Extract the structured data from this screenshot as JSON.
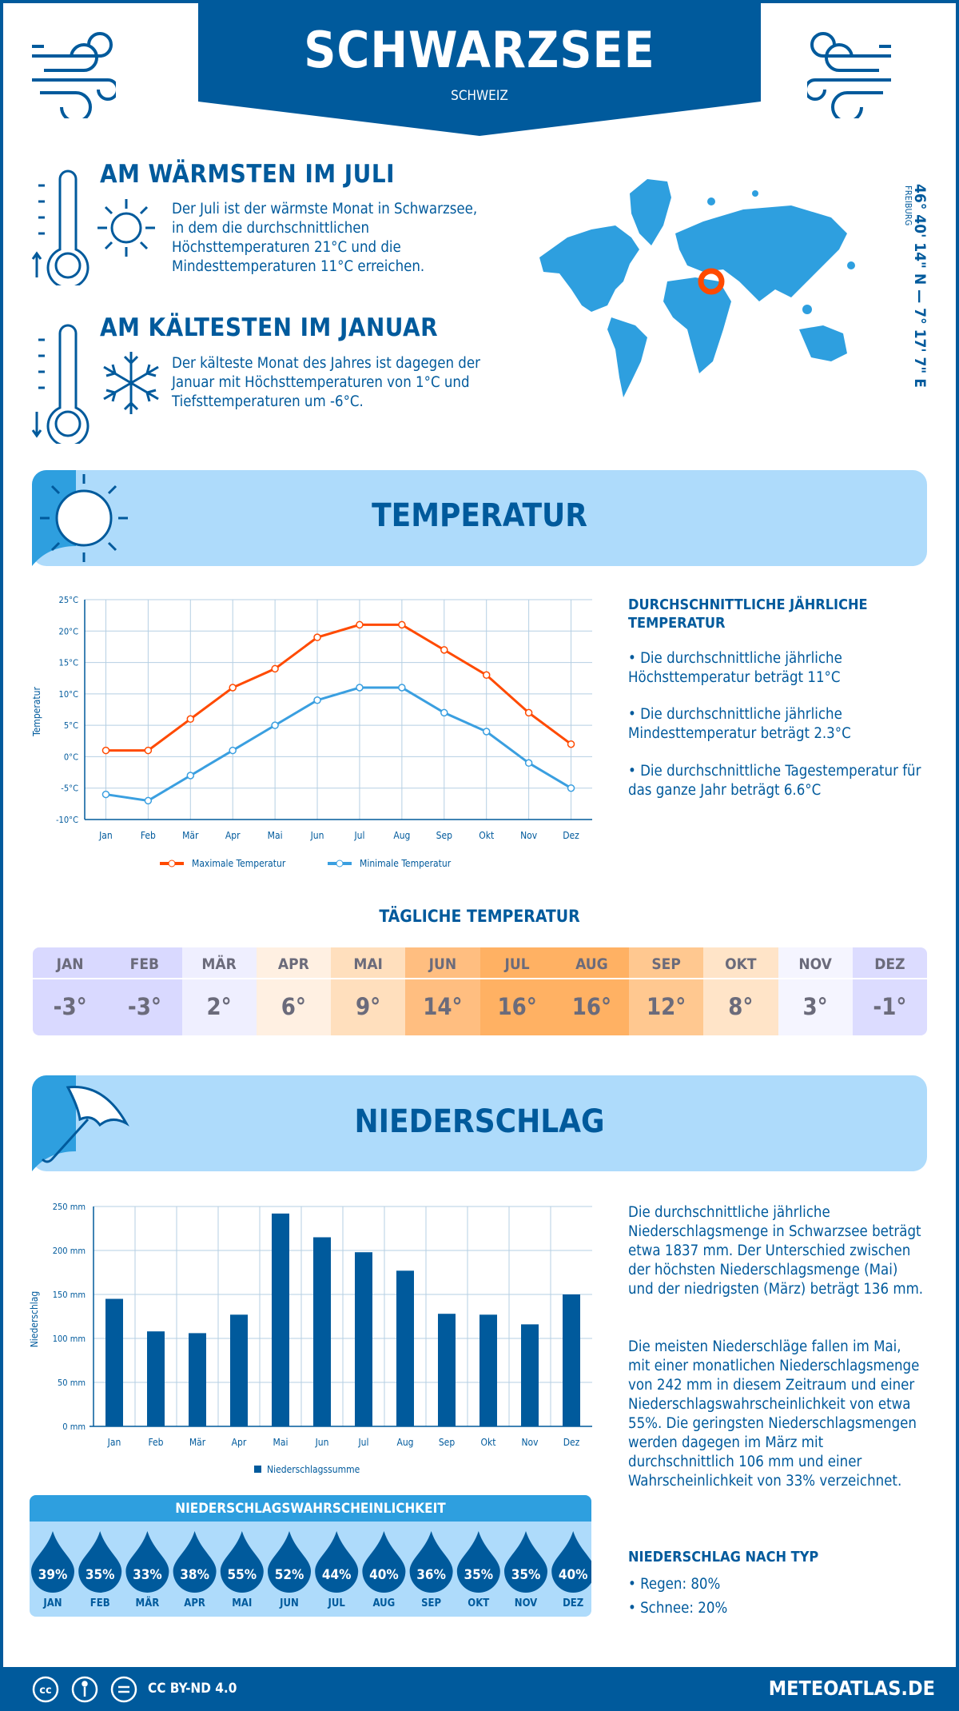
{
  "header": {
    "title": "SCHWARZSEE",
    "subtitle": "SCHWEIZ"
  },
  "warmest": {
    "title": "AM WÄRMSTEN IM JULI",
    "text": "Der Juli ist der wärmste Monat in Schwarzsee, in dem die durchschnittlichen Höchsttemperaturen 21°C und die Mindesttemperaturen 11°C erreichen."
  },
  "coldest": {
    "title": "AM KÄLTESTEN IM JANUAR",
    "text": "Der kälteste Monat des Jahres ist dagegen der Januar mit Höchsttemperaturen von 1°C und Tiefsttemperaturen um -6°C."
  },
  "map": {
    "coordinates": "46° 40' 14\" N — 7° 17' 7\" E",
    "region": "FREIBURG",
    "marker_color": "#ff4a00",
    "land_color": "#2e9fdf"
  },
  "temperature": {
    "section_title": "TEMPERATUR",
    "side_title": "DURCHSCHNITTLICHE JÄHRLICHE TEMPERATUR",
    "bullets": [
      "• Die durchschnittliche jährliche Höchsttemperatur beträgt 11°C",
      "• Die durchschnittliche jährliche Mindesttemperatur beträgt 2.3°C",
      "• Die durchschnittliche Tagestemperatur für das ganze Jahr beträgt 6.6°C"
    ],
    "daily_title": "TÄGLICHE TEMPERATUR",
    "daily": [
      {
        "month": "JAN",
        "value": "-3°",
        "color": "#d9d9ff"
      },
      {
        "month": "FEB",
        "value": "-3°",
        "color": "#d9d9ff"
      },
      {
        "month": "MÄR",
        "value": "2°",
        "color": "#efefff"
      },
      {
        "month": "APR",
        "value": "6°",
        "color": "#fff0e2"
      },
      {
        "month": "MAI",
        "value": "9°",
        "color": "#ffdfbd"
      },
      {
        "month": "JUN",
        "value": "14°",
        "color": "#ffbe80"
      },
      {
        "month": "JUL",
        "value": "16°",
        "color": "#ffb163"
      },
      {
        "month": "AUG",
        "value": "16°",
        "color": "#ffb163"
      },
      {
        "month": "SEP",
        "value": "12°",
        "color": "#ffc890"
      },
      {
        "month": "OKT",
        "value": "8°",
        "color": "#ffe4c8"
      },
      {
        "month": "NOV",
        "value": "3°",
        "color": "#f5f5ff"
      },
      {
        "month": "DEZ",
        "value": "-1°",
        "color": "#dcdcff"
      }
    ]
  },
  "precipitation": {
    "section_title": "NIEDERSCHLAG",
    "text1": "Die durchschnittliche jährliche Niederschlagsmenge in Schwarzsee beträgt etwa 1837 mm. Der Unterschied zwischen der höchsten Niederschlagsmenge (Mai) und der niedrigsten (März) beträgt 136 mm.",
    "text2": "Die meisten Niederschläge fallen im Mai, mit einer monatlichen Niederschlagsmenge von 242 mm in diesem Zeitraum und einer Niederschlagswahrscheinlichkeit von etwa 55%. Die geringsten Niederschlagsmengen werden dagegen im März mit durchschnittlich 106 mm und einer Wahrscheinlichkeit von 33% verzeichnet.",
    "type_title": "NIEDERSCHLAG NACH TYP",
    "types": [
      "• Regen: 80%",
      "• Schnee: 20%"
    ],
    "probability_title": "NIEDERSCHLAGSWAHRSCHEINLICHKEIT",
    "probability": [
      {
        "month": "JAN",
        "value": "39%"
      },
      {
        "month": "FEB",
        "value": "35%"
      },
      {
        "month": "MÄR",
        "value": "33%"
      },
      {
        "month": "APR",
        "value": "38%"
      },
      {
        "month": "MAI",
        "value": "55%"
      },
      {
        "month": "JUN",
        "value": "52%"
      },
      {
        "month": "JUL",
        "value": "44%"
      },
      {
        "month": "AUG",
        "value": "40%"
      },
      {
        "month": "SEP",
        "value": "36%"
      },
      {
        "month": "OKT",
        "value": "35%"
      },
      {
        "month": "NOV",
        "value": "35%"
      },
      {
        "month": "DEZ",
        "value": "40%"
      }
    ]
  },
  "footer": {
    "license": "CC BY-ND 4.0",
    "site": "METEOATLAS.DE"
  },
  "chart_data": [
    {
      "type": "line",
      "ylabel": "Temperatur",
      "categories": [
        "Jan",
        "Feb",
        "Mär",
        "Apr",
        "Mai",
        "Jun",
        "Jul",
        "Aug",
        "Sep",
        "Okt",
        "Nov",
        "Dez"
      ],
      "yticks": [
        "25°C",
        "20°C",
        "15°C",
        "10°C",
        "5°C",
        "0°C",
        "-5°C",
        "-10°C"
      ],
      "ylim": [
        -10,
        25
      ],
      "grid": true,
      "legend": "bottom",
      "series": [
        {
          "name": "Maximale Temperatur",
          "color": "#ff4a00",
          "values": [
            1,
            1,
            6,
            11,
            14,
            19,
            21,
            21,
            17,
            13,
            7,
            2
          ]
        },
        {
          "name": "Minimale Temperatur",
          "color": "#3a9fe0",
          "values": [
            -6,
            -7,
            -3,
            1,
            5,
            9,
            11,
            11,
            7,
            4,
            -1,
            -5
          ]
        }
      ]
    },
    {
      "type": "bar",
      "ylabel": "Niederschlag",
      "categories": [
        "Jan",
        "Feb",
        "Mär",
        "Apr",
        "Mai",
        "Jun",
        "Jul",
        "Aug",
        "Sep",
        "Okt",
        "Nov",
        "Dez"
      ],
      "yticks": [
        "250 mm",
        "200 mm",
        "150 mm",
        "100 mm",
        "50 mm",
        "0 mm"
      ],
      "ylim": [
        0,
        250
      ],
      "grid": true,
      "legend": "bottom",
      "series": [
        {
          "name": "Niederschlagssumme",
          "color": "#005a9c",
          "values": [
            145,
            108,
            106,
            127,
            242,
            215,
            198,
            177,
            128,
            127,
            116,
            150
          ]
        }
      ]
    }
  ]
}
